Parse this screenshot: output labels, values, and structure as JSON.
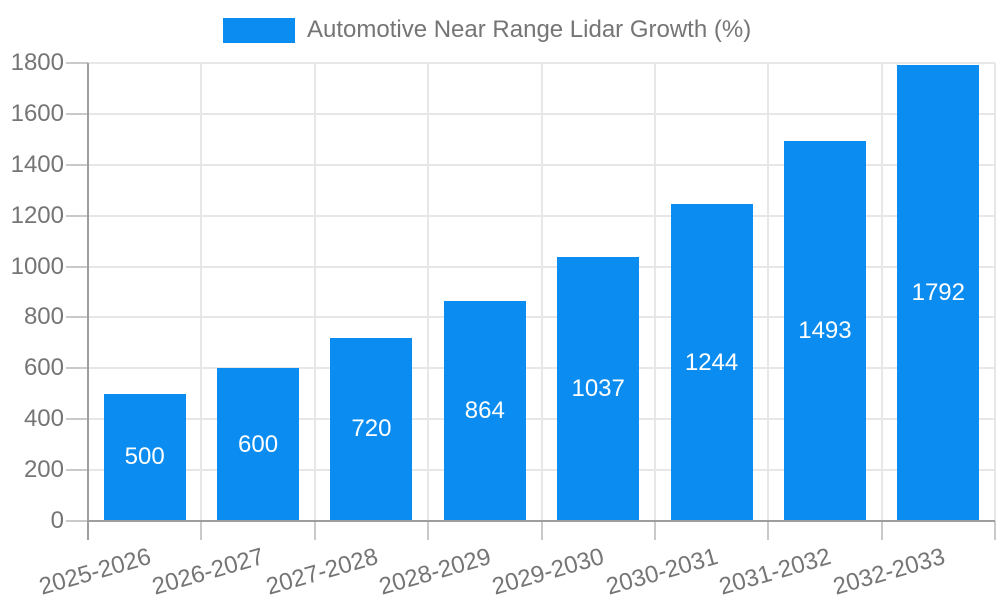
{
  "chart_data": {
    "type": "bar",
    "title": "Automotive Near Range Lidar Growth (%)",
    "legend_position": "top",
    "categories": [
      "2025-2026",
      "2026-2027",
      "2027-2028",
      "2028-2029",
      "2029-2030",
      "2030-2031",
      "2031-2032",
      "2032-2033"
    ],
    "series": [
      {
        "name": "Automotive Near Range Lidar Growth (%)",
        "values": [
          500,
          600,
          720,
          864,
          1037,
          1244,
          1493,
          1792
        ]
      }
    ],
    "value_labels": [
      "500",
      "600",
      "720",
      "864",
      "1037",
      "1244",
      "1493",
      "1792"
    ],
    "xlabel": "",
    "ylabel": "",
    "ylim": [
      0,
      1800
    ],
    "yticks": [
      0,
      200,
      400,
      600,
      800,
      1000,
      1200,
      1400,
      1600,
      1800
    ],
    "grid": true,
    "x_labels_rotated": true,
    "colors": {
      "bar": "#0b8cf1",
      "value_label": "#ffffff",
      "axis_text": "#757575",
      "grid_line": "#e7e7e7",
      "axis_line": "#9e9e9e",
      "tick_line": "#c9c9c9",
      "background": "#ffffff"
    }
  }
}
